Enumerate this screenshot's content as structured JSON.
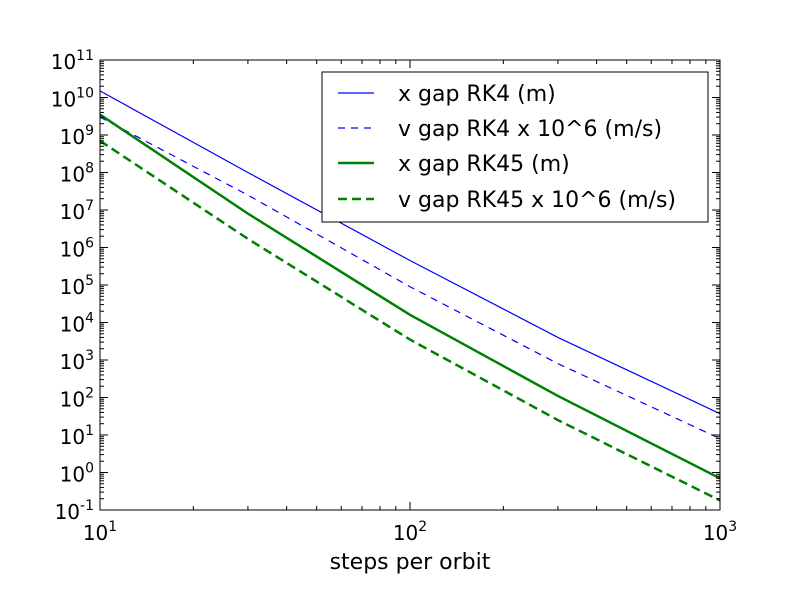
{
  "chart_data": {
    "type": "line",
    "title": "",
    "xlabel": "steps per orbit",
    "ylabel": "",
    "xscale": "log",
    "yscale": "log",
    "xlim": [
      10,
      1000
    ],
    "ylim": [
      0.1,
      100000000000
    ],
    "grid": false,
    "legend_position": "top-right",
    "x_ticks": [
      {
        "base": "10",
        "exp": "1",
        "value": 10
      },
      {
        "base": "10",
        "exp": "2",
        "value": 100
      },
      {
        "base": "10",
        "exp": "3",
        "value": 1000
      }
    ],
    "y_ticks": [
      {
        "base": "10",
        "exp": "-1",
        "value": 0.1
      },
      {
        "base": "10",
        "exp": "0",
        "value": 1
      },
      {
        "base": "10",
        "exp": "1",
        "value": 10
      },
      {
        "base": "10",
        "exp": "2",
        "value": 100
      },
      {
        "base": "10",
        "exp": "3",
        "value": 1000
      },
      {
        "base": "10",
        "exp": "4",
        "value": 10000
      },
      {
        "base": "10",
        "exp": "5",
        "value": 100000
      },
      {
        "base": "10",
        "exp": "6",
        "value": 1000000
      },
      {
        "base": "10",
        "exp": "7",
        "value": 10000000
      },
      {
        "base": "10",
        "exp": "8",
        "value": 100000000
      },
      {
        "base": "10",
        "exp": "9",
        "value": 1000000000
      },
      {
        "base": "10",
        "exp": "10",
        "value": 10000000000
      },
      {
        "base": "10",
        "exp": "11",
        "value": 100000000000
      }
    ],
    "series": [
      {
        "name": "x gap RK4 (m)",
        "color": "#0000ff",
        "style": "solid",
        "weight": "thin",
        "x": [
          10,
          30,
          100,
          300,
          1000
        ],
        "y": [
          15000000000,
          100000000,
          450000,
          4000,
          37
        ]
      },
      {
        "name": "v gap RK4 x 10^6 (m/s)",
        "color": "#0000ff",
        "style": "dashed",
        "weight": "thin",
        "x": [
          10,
          30,
          100,
          300,
          1000
        ],
        "y": [
          3000000000,
          25000000,
          90000,
          800,
          8
        ]
      },
      {
        "name": "x gap RK45 (m)",
        "color": "#008000",
        "style": "solid",
        "weight": "thick",
        "x": [
          10,
          30,
          100,
          300,
          1000
        ],
        "y": [
          3500000000,
          8000000,
          16000,
          110,
          0.7
        ]
      },
      {
        "name": "v gap RK45 x 10^6 (m/s)",
        "color": "#008000",
        "style": "dashed",
        "weight": "thick",
        "x": [
          10,
          30,
          100,
          300,
          1000
        ],
        "y": [
          700000000,
          1700000,
          3500,
          25,
          0.18
        ]
      }
    ]
  }
}
